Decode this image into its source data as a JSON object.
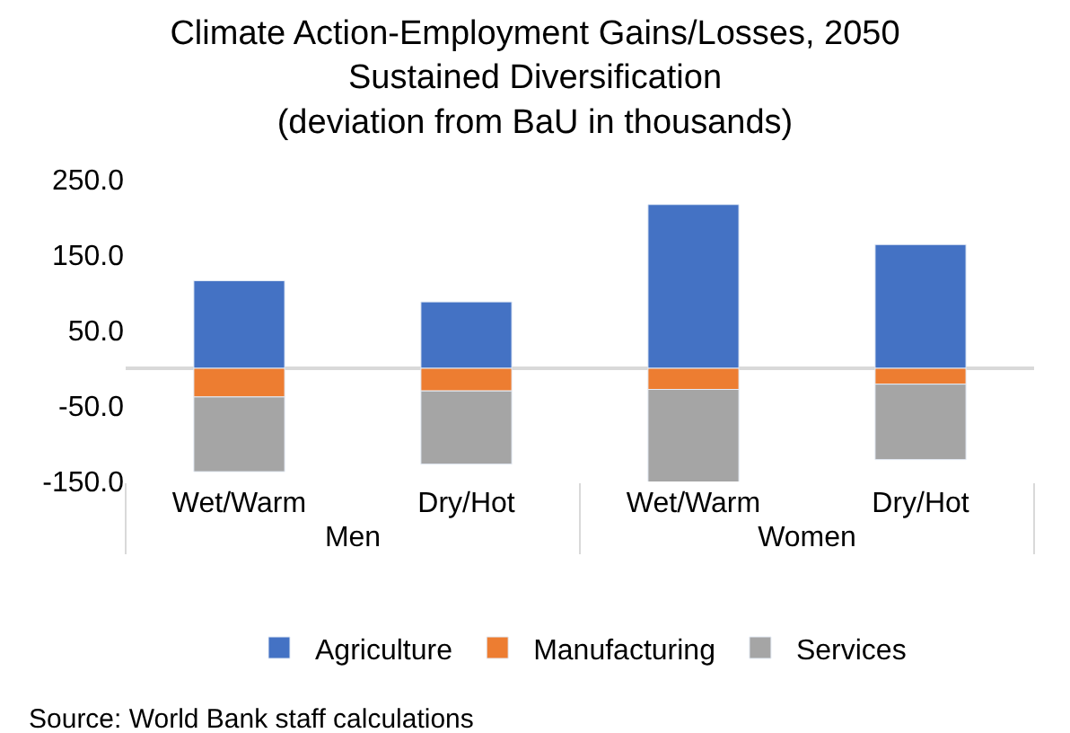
{
  "chart_data": {
    "type": "bar",
    "stacked": true,
    "title": "Climate Action-Employment Gains/Losses, 2050\nSustained Diversification\n(deviation from BaU in thousands)",
    "categories": [
      "Wet/Warm",
      "Dry/Hot",
      "Wet/Warm",
      "Dry/Hot"
    ],
    "series": [
      {
        "name": "Agriculture",
        "color": "#4472c4",
        "values": [
          116,
          88,
          217,
          164
        ]
      },
      {
        "name": "Manufacturing",
        "color": "#ed7d31",
        "values": [
          -38,
          -30,
          -28,
          -21
        ]
      },
      {
        "name": "Services",
        "color": "#a5a5a5",
        "values": [
          -99,
          -97,
          -124,
          -100
        ]
      }
    ],
    "ylim": [
      -150,
      250
    ],
    "yticks": [
      {
        "value": -150,
        "label": "-150.0"
      },
      {
        "value": -50,
        "label": "-50.0"
      },
      {
        "value": 50,
        "label": "50.0"
      },
      {
        "value": 150,
        "label": "150.0"
      },
      {
        "value": 250,
        "label": "250.0"
      }
    ],
    "legend": "bottom",
    "annotations": [
      "Source: World Bank staff calculations",
      "Men",
      "Women"
    ]
  }
}
